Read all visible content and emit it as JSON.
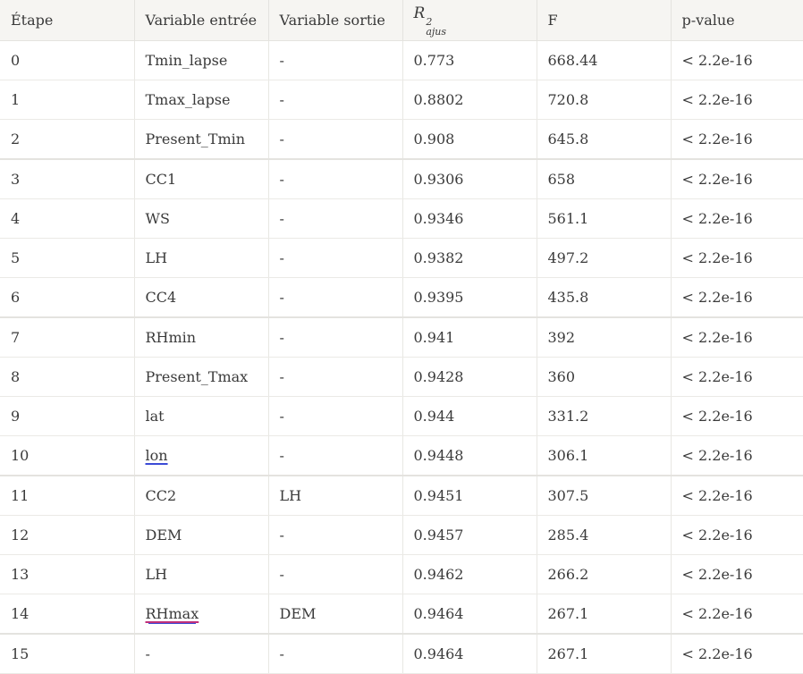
{
  "headers": {
    "etape": "Étape",
    "var_in": "Variable entrée",
    "var_out": "Variable sortie",
    "r2_base": "R",
    "r2_sup": "2",
    "r2_sub": "ajus",
    "f": "F",
    "pvalue": "p-value"
  },
  "rows": [
    {
      "etape": "0",
      "var_in": "Tmin_lapse",
      "var_out": "-",
      "r2": "0.773",
      "f": "668.44",
      "p": "< 2.2e-16"
    },
    {
      "etape": "1",
      "var_in": "Tmax_lapse",
      "var_out": "-",
      "r2": "0.8802",
      "f": "720.8",
      "p": "< 2.2e-16"
    },
    {
      "etape": "2",
      "var_in": "Present_Tmin",
      "var_out": "-",
      "r2": "0.908",
      "f": "645.8",
      "p": "< 2.2e-16"
    },
    {
      "etape": "3",
      "var_in": "CC1",
      "var_out": "-",
      "r2": "0.9306",
      "f": "658",
      "p": "< 2.2e-16"
    },
    {
      "etape": "4",
      "var_in": "WS",
      "var_out": "-",
      "r2": "0.9346",
      "f": "561.1",
      "p": "< 2.2e-16"
    },
    {
      "etape": "5",
      "var_in": "LH",
      "var_out": "-",
      "r2": "0.9382",
      "f": "497.2",
      "p": "< 2.2e-16"
    },
    {
      "etape": "6",
      "var_in": "CC4",
      "var_out": "-",
      "r2": "0.9395",
      "f": "435.8",
      "p": "< 2.2e-16"
    },
    {
      "etape": "7",
      "var_in": "RHmin",
      "var_out": "-",
      "r2": "0.941",
      "f": "392",
      "p": "< 2.2e-16"
    },
    {
      "etape": "8",
      "var_in": "Present_Tmax",
      "var_out": "-",
      "r2": "0.9428",
      "f": "360",
      "p": "< 2.2e-16"
    },
    {
      "etape": "9",
      "var_in": "lat",
      "var_out": "-",
      "r2": "0.944",
      "f": "331.2",
      "p": "< 2.2e-16"
    },
    {
      "etape": "10",
      "var_in": "lon",
      "var_out": "-",
      "r2": "0.9448",
      "f": "306.1",
      "p": "< 2.2e-16"
    },
    {
      "etape": "11",
      "var_in": "CC2",
      "var_out": "LH",
      "r2": "0.9451",
      "f": "307.5",
      "p": "< 2.2e-16"
    },
    {
      "etape": "12",
      "var_in": "DEM",
      "var_out": "-",
      "r2": "0.9457",
      "f": "285.4",
      "p": "< 2.2e-16"
    },
    {
      "etape": "13",
      "var_in": "LH",
      "var_out": "-",
      "r2": "0.9462",
      "f": "266.2",
      "p": "< 2.2e-16"
    },
    {
      "etape": "14",
      "var_in": "RHmax",
      "var_out": "DEM",
      "r2": "0.9464",
      "f": "267.1",
      "p": "< 2.2e-16"
    },
    {
      "etape": "15",
      "var_in": "-",
      "var_out": "-",
      "r2": "0.9464",
      "f": "267.1",
      "p": "< 2.2e-16"
    }
  ]
}
